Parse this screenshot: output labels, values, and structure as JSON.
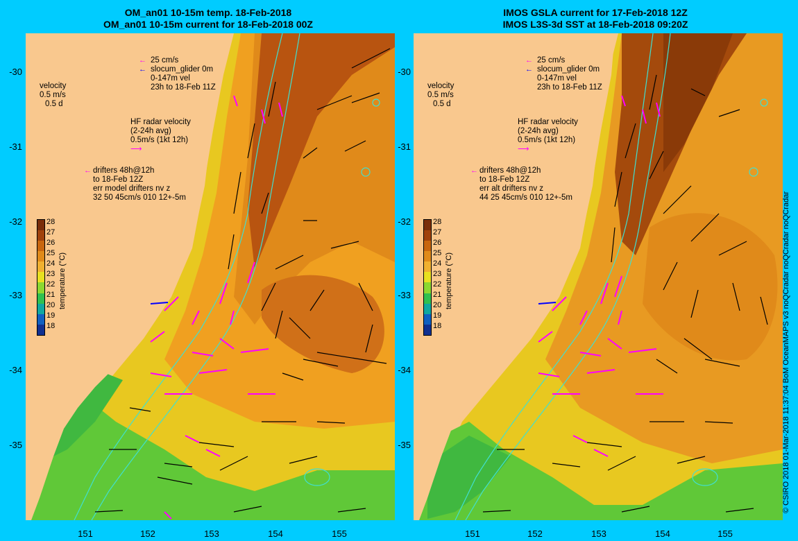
{
  "left_panel": {
    "title_line1": "OM_an01 10-15m temp. 18-Feb-2018",
    "title_line2": "OM_an01 10-15m current for 18-Feb-2018 00Z",
    "velocity_label": "velocity",
    "velocity_scale": "0.5 m/s",
    "velocity_days": "0.5 d",
    "glider_speed": "25 cm/s",
    "glider_label": "slocum_glider 0m",
    "glider_depth": "0-147m vel",
    "glider_time": "23h to 18-Feb 11Z",
    "hf_title": "HF radar velocity",
    "hf_avg": "(2-24h avg)",
    "hf_scale": "0.5m/s (1kt 12h)",
    "drifters_line1": "drifters 48h@12h",
    "drifters_line2": "to 18-Feb 12Z",
    "drifters_line3": "err model drifters nv z",
    "drifters_line4": "32 50 45cm/s 010 12+-5m"
  },
  "right_panel": {
    "title_line1": "IMOS GSLA current for 17-Feb-2018 12Z",
    "title_line2": "IMOS L3S-3d SST at 18-Feb-2018 09:20Z",
    "velocity_label": "velocity",
    "velocity_scale": "0.5 m/s",
    "velocity_days": "0.5 d",
    "glider_speed": "25 cm/s",
    "glider_label": "slocum_glider 0m",
    "glider_depth": "0-147m vel",
    "glider_time": "23h to 18-Feb 11Z",
    "hf_title": "HF radar velocity",
    "hf_avg": "(2-24h avg)",
    "hf_scale": "0.5m/s (1kt 12h)",
    "drifters_line1": "drifters 48h@12h",
    "drifters_line2": "to 18-Feb 12Z",
    "drifters_line3": "err alt drifters nv z",
    "drifters_line4": "44 25 45cm/s 010 12+-5m"
  },
  "axes": {
    "lat_ticks": [
      "-30",
      "-31",
      "-32",
      "-33",
      "-34",
      "-35"
    ],
    "lon_ticks": [
      "151",
      "152",
      "153",
      "154",
      "155"
    ]
  },
  "colorbar": {
    "ticks": [
      "28",
      "27",
      "26",
      "25",
      "24",
      "23",
      "22",
      "21",
      "20",
      "19",
      "18"
    ],
    "label": "temperature (°C)",
    "colors": [
      "#7a2e0a",
      "#a0420c",
      "#c8660f",
      "#e08a1a",
      "#f0b030",
      "#e8e020",
      "#8cd830",
      "#30c050",
      "#10a8a0",
      "#1060c0",
      "#103090"
    ]
  },
  "credit": "© CSIRO 2018   01-Mar-2018 11:37:04 BoM OceanMAPS v3 noQCradar noQCradar noQCradar",
  "colors": {
    "background": "#00ccff",
    "land": "#f9c88e",
    "hf_radar": "#ff00ff",
    "glider": "#0000ff",
    "isobath": "#40e0d0"
  }
}
